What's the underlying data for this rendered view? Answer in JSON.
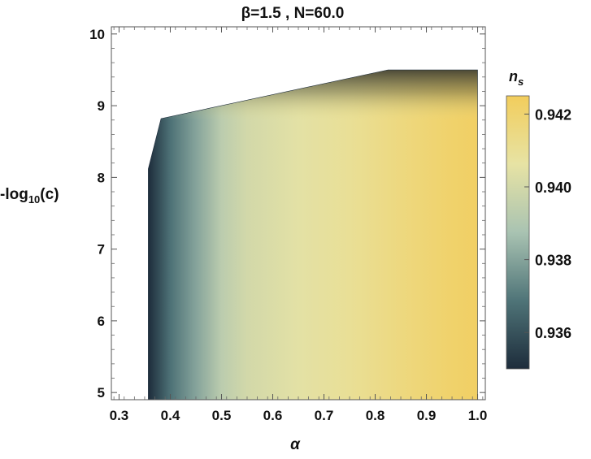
{
  "chart_data": {
    "type": "heatmap",
    "title": "β=1.5 , N=60.0",
    "xlabel": "α",
    "ylabel": "-log10(c)",
    "ylabel_base": "-log",
    "ylabel_sub": "10",
    "ylabel_tail": "(c)",
    "xlim": [
      0.285,
      1.015
    ],
    "ylim": [
      4.9,
      10.1
    ],
    "x_ticks": [
      0.3,
      0.4,
      0.5,
      0.6,
      0.7,
      0.8,
      0.9,
      1.0
    ],
    "x_tick_labels": [
      "0.3",
      "0.4",
      "0.5",
      "0.6",
      "0.7",
      "0.8",
      "0.9",
      "1.0"
    ],
    "y_ticks": [
      5,
      6,
      7,
      8,
      9,
      10
    ],
    "y_tick_labels": [
      "5",
      "6",
      "7",
      "8",
      "9",
      "10"
    ],
    "region_boundary": [
      [
        0.357,
        4.9
      ],
      [
        0.357,
        7.4
      ],
      [
        0.357,
        8.12
      ],
      [
        0.382,
        8.82
      ],
      [
        0.825,
        9.5
      ],
      [
        1.0,
        9.5
      ],
      [
        1.0,
        4.9
      ]
    ],
    "top_band": {
      "y_from": 8.8,
      "y_to": 9.5,
      "note": "darkening toward upper edge near α≈0.85"
    },
    "color_profile_by_alpha": [
      {
        "x": 0.357,
        "ns": 0.935
      },
      {
        "x": 0.4,
        "ns": 0.9368
      },
      {
        "x": 0.45,
        "ns": 0.938
      },
      {
        "x": 0.5,
        "ns": 0.9393
      },
      {
        "x": 0.55,
        "ns": 0.94
      },
      {
        "x": 0.65,
        "ns": 0.9405
      },
      {
        "x": 0.75,
        "ns": 0.941
      },
      {
        "x": 0.85,
        "ns": 0.9416
      },
      {
        "x": 0.95,
        "ns": 0.9421
      },
      {
        "x": 1.0,
        "ns": 0.9423
      }
    ],
    "colorbar": {
      "label": "n",
      "label_sub": "s",
      "range": [
        0.935,
        0.9425
      ],
      "ticks": [
        0.936,
        0.938,
        0.94,
        0.942
      ],
      "tick_labels": [
        "0.936",
        "0.938",
        "0.940",
        "0.942"
      ],
      "colors": [
        "#1d2c3b",
        "#4f7478",
        "#a9c3b2",
        "#e7e3a4",
        "#f2cd5c"
      ]
    }
  }
}
